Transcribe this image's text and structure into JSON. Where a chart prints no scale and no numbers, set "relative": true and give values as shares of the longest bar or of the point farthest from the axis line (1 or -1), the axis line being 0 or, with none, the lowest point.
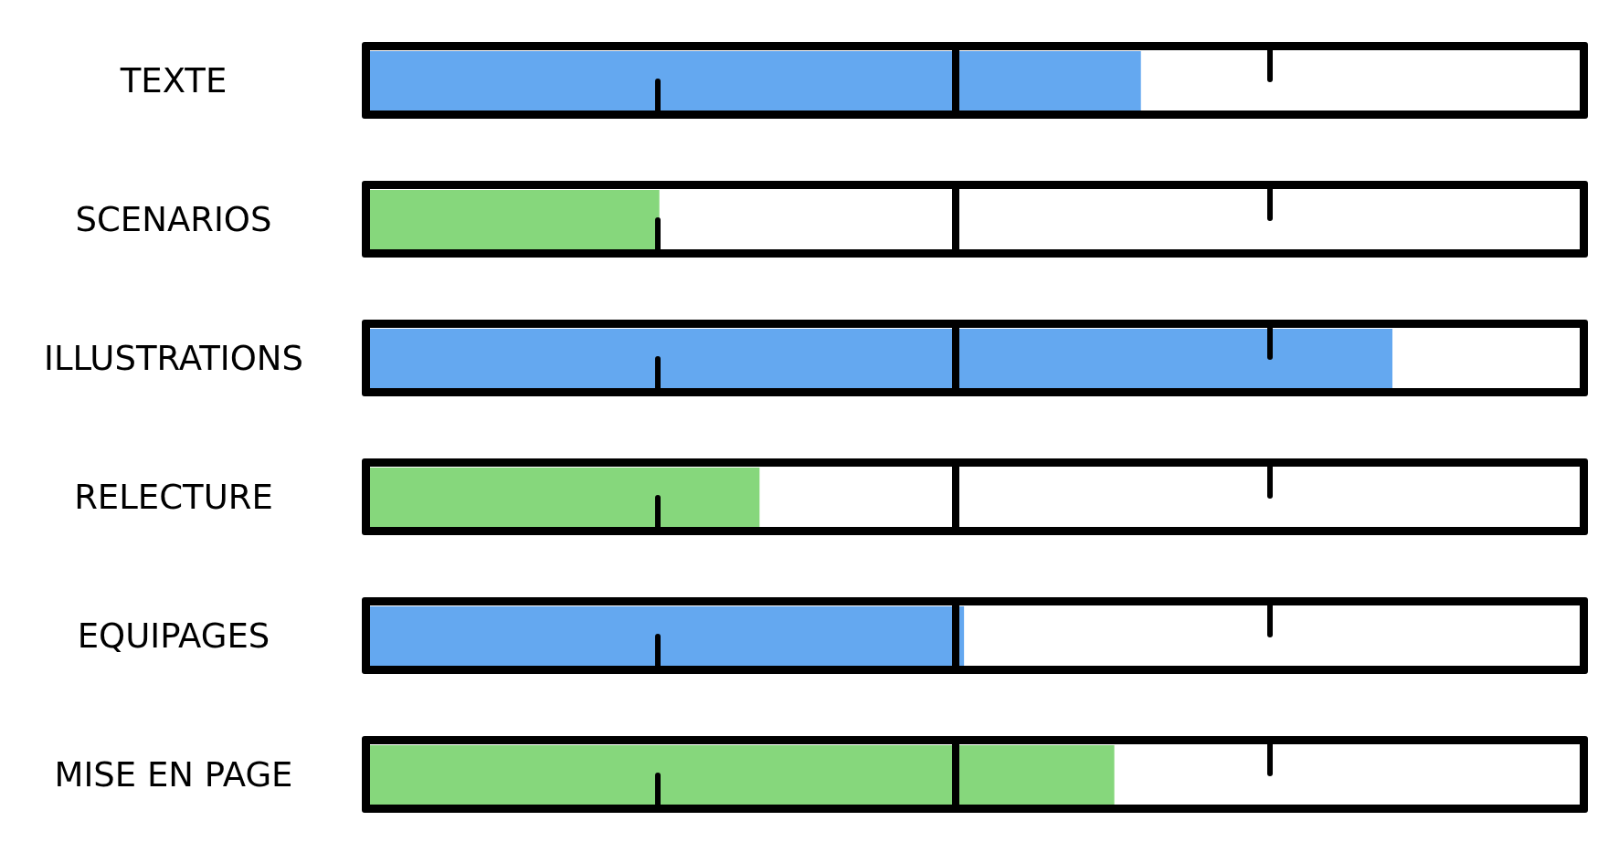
{
  "chart_data": {
    "type": "bar",
    "orientation": "horizontal",
    "relative": true,
    "categories": [
      "TEXTE",
      "SCENARIOS",
      "ILLUSTRATIONS",
      "RELECTURE",
      "EQUIPAGES",
      "MISE EN PAGE"
    ],
    "values": [
      0.754,
      0.283,
      1,
      0.381,
      0.581,
      0.728
    ],
    "colors": [
      "#64a8f0",
      "#86d77c",
      "#64a8f0",
      "#86d77c",
      "#64a8f0",
      "#86d77c"
    ]
  }
}
